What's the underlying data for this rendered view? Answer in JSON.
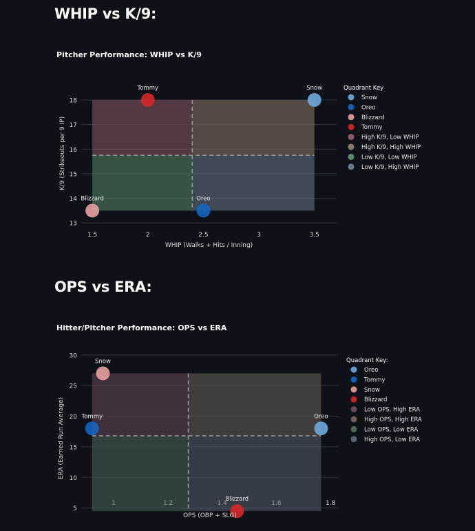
{
  "sections": [
    {
      "heading": "WHIP vs K/9:"
    },
    {
      "heading": "OPS vs ERA:"
    }
  ],
  "chart_data": [
    {
      "type": "scatter",
      "title": "Pitcher Performance: WHIP vs K/9",
      "xlabel": "WHIP (Walks + Hits / Inning)",
      "ylabel": "K/9 (Strikeouts per 9 IP)",
      "xlim": [
        1.4,
        3.7
      ],
      "ylim": [
        12.95,
        18.7
      ],
      "xticks": [
        1.5,
        2,
        2.5,
        3,
        3.5
      ],
      "yticks": [
        13,
        14,
        15,
        16,
        17,
        18
      ],
      "grid": true,
      "legend_title": "Quadrant Key",
      "legend_position": "right",
      "x_split": 2.4,
      "y_split": 15.75,
      "points": [
        {
          "name": "Snow",
          "x": 3.5,
          "y": 18,
          "color": "#6fa8dc"
        },
        {
          "name": "Oreo",
          "x": 2.5,
          "y": 13.5,
          "color": "#1565c0"
        },
        {
          "name": "Blizzard",
          "x": 1.5,
          "y": 13.5,
          "color": "#e8a0a0"
        },
        {
          "name": "Tommy",
          "x": 2,
          "y": 18,
          "color": "#d62728"
        }
      ],
      "quadrants": [
        {
          "name": "High K/9, Low WHIP",
          "x0": 1.5,
          "x1": 2.4,
          "y0": 15.75,
          "y1": 18,
          "color": "#8a5a68"
        },
        {
          "name": "High K/9, High WHIP",
          "x0": 2.4,
          "x1": 3.5,
          "y0": 15.75,
          "y1": 18,
          "color": "#8a7a68"
        },
        {
          "name": "Low K/9, Low WHIP",
          "x0": 1.5,
          "x1": 2.4,
          "y0": 13.5,
          "y1": 15.75,
          "color": "#5a8a68"
        },
        {
          "name": "Low K/9, High WHIP",
          "x0": 2.4,
          "x1": 3.5,
          "y0": 13.5,
          "y1": 15.75,
          "color": "#6a7a8a"
        }
      ]
    },
    {
      "type": "scatter",
      "title": "Hitter/Pitcher Performance: OPS vs ERA",
      "xlabel": "OPS (OBP + SLG)",
      "ylabel": "ERA (Earned Run Average)",
      "xlim": [
        0.88,
        1.83
      ],
      "ylim": [
        2.6,
        30.2
      ],
      "xticks": [
        1,
        1.2,
        1.4,
        1.6,
        1.8
      ],
      "yticks": [
        5,
        10,
        15,
        20,
        25,
        30
      ],
      "grid": true,
      "legend_title": "Quadrant Key:",
      "legend_position": "right",
      "x_split": 1.275,
      "y_split": 16.8,
      "points": [
        {
          "name": "Oreo",
          "x": 1.765,
          "y": 18,
          "color": "#6fa8dc"
        },
        {
          "name": "Tommy",
          "x": 0.92,
          "y": 18,
          "color": "#1565c0"
        },
        {
          "name": "Snow",
          "x": 0.96,
          "y": 27,
          "color": "#e8a0a0"
        },
        {
          "name": "Blizzard",
          "x": 1.455,
          "y": 4.5,
          "color": "#d62728"
        }
      ],
      "quadrants": [
        {
          "name": "Low OPS, High ERA",
          "x0": 0.92,
          "x1": 1.275,
          "y0": 16.8,
          "y1": 27,
          "color": "#6a4a5a"
        },
        {
          "name": "High OPS, High ERA",
          "x0": 1.275,
          "x1": 1.765,
          "y0": 16.8,
          "y1": 27,
          "color": "#6a6258"
        },
        {
          "name": "Low OPS, Low ERA",
          "x0": 0.92,
          "x1": 1.275,
          "y0": 4.5,
          "y1": 16.8,
          "color": "#4a6a55"
        },
        {
          "name": "High OPS, Low ERA",
          "x0": 1.275,
          "x1": 1.765,
          "y0": 4.5,
          "y1": 16.8,
          "color": "#56606e"
        }
      ]
    }
  ]
}
